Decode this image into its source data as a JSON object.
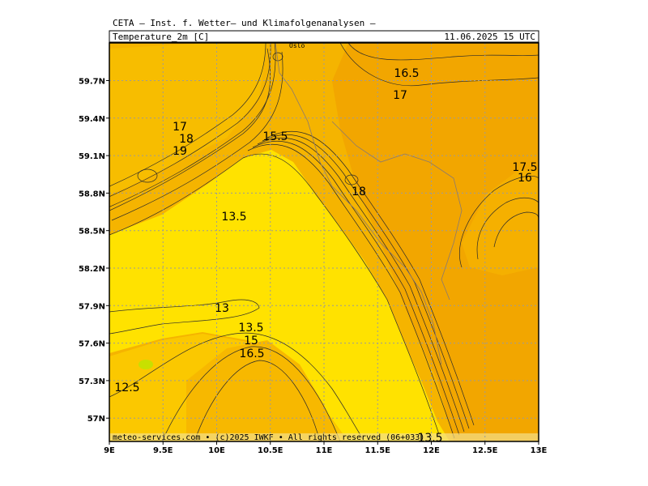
{
  "header": "CETA – Inst. f. Wetter– und Klimafolgenanalysen –",
  "title": "Temperature_2m [C]",
  "valid_time": "11.06.2025 15 UTC",
  "place_label": "Oslo",
  "lon_labels": [
    "9E",
    "9.5E",
    "10E",
    "10.5E",
    "11E",
    "11.5E",
    "12E",
    "12.5E",
    "13E"
  ],
  "lat_labels": [
    "59.7N",
    "59.4N",
    "59.1N",
    "58.8N",
    "58.5N",
    "58.2N",
    "57.9N",
    "57.6N",
    "57.3N",
    "57N"
  ],
  "contour_labels": [
    "16.5",
    "17",
    "17",
    "18",
    "19",
    "15.5",
    "18",
    "17.5",
    "16",
    "13.5",
    "13",
    "13.5",
    "15",
    "16.5",
    "12.5",
    "13.5"
  ],
  "footer": "meteo-services.com • (c)2025 IWKF • All rights reserved (06+033)"
}
